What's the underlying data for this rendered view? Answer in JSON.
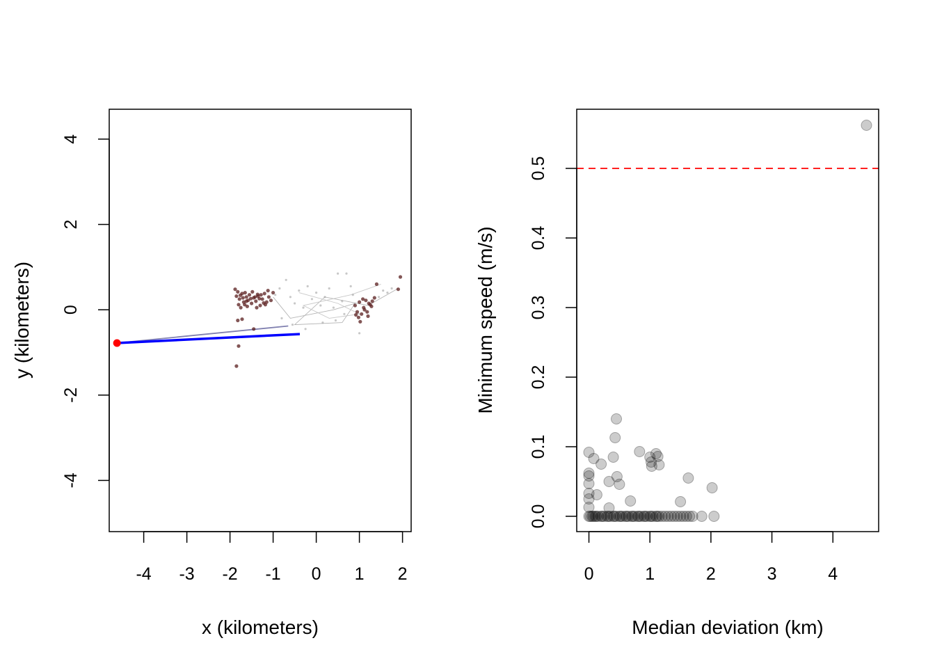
{
  "chart_data": [
    {
      "type": "scatter",
      "xlabel": "x (kilometers)",
      "ylabel": "y (kilometers)",
      "xlim": [
        -4.8,
        2.2
      ],
      "ylim": [
        -5.2,
        4.7
      ],
      "x_ticks": [
        -4,
        -3,
        -2,
        -1,
        0,
        1,
        2
      ],
      "y_ticks": [
        -4,
        -2,
        0,
        2,
        4
      ],
      "grid": false,
      "series": [
        {
          "role": "track-points",
          "color": "#5a1e1e",
          "points": [
            [
              -1.85,
              0.32
            ],
            [
              -1.78,
              0.25
            ],
            [
              -1.72,
              0.38
            ],
            [
              -1.68,
              0.18
            ],
            [
              -1.62,
              0.3
            ],
            [
              -1.58,
              0.22
            ],
            [
              -1.8,
              0.12
            ],
            [
              -1.75,
              0.05
            ],
            [
              -1.7,
              0.28
            ],
            [
              -1.65,
              0.4
            ],
            [
              -1.55,
              0.35
            ],
            [
              -1.5,
              0.15
            ],
            [
              -1.45,
              0.28
            ],
            [
              -1.4,
              0.2
            ],
            [
              -1.35,
              0.32
            ],
            [
              -1.3,
              0.1
            ],
            [
              -1.25,
              0.25
            ],
            [
              -1.2,
              0.38
            ],
            [
              -1.15,
              0.18
            ],
            [
              -1.1,
              0.3
            ],
            [
              -1.05,
              0.22
            ],
            [
              -1.0,
              0.4
            ],
            [
              -1.88,
              0.48
            ],
            [
              -1.82,
              0.42
            ],
            [
              -1.6,
              0.08
            ],
            [
              -1.48,
              0.42
            ],
            [
              -1.38,
              0.05
            ],
            [
              -1.28,
              0.35
            ],
            [
              -1.18,
              0.12
            ],
            [
              -1.12,
              0.45
            ],
            [
              -1.72,
              -0.22
            ],
            [
              -1.82,
              -0.25
            ],
            [
              -1.42,
              0.3
            ],
            [
              -1.32,
              0.26
            ],
            [
              -1.22,
              0.16
            ],
            [
              -1.52,
              0.26
            ],
            [
              -1.62,
              0.2
            ],
            [
              -1.76,
              0.34
            ],
            [
              -1.66,
              0.12
            ],
            [
              -1.36,
              0.36
            ],
            [
              0.9,
              0.1
            ],
            [
              0.95,
              -0.05
            ],
            [
              1.0,
              0.18
            ],
            [
              1.05,
              -0.1
            ],
            [
              1.1,
              0.05
            ],
            [
              1.15,
              0.22
            ],
            [
              1.2,
              -0.15
            ],
            [
              1.25,
              0.12
            ],
            [
              1.3,
              0.2
            ],
            [
              1.35,
              0.28
            ],
            [
              0.98,
              -0.18
            ],
            [
              1.08,
              0.25
            ],
            [
              1.18,
              -0.05
            ],
            [
              1.28,
              0.08
            ],
            [
              1.02,
              -0.28
            ],
            [
              1.12,
              0.0
            ],
            [
              0.92,
              -0.12
            ],
            [
              1.22,
              0.15
            ],
            [
              1.4,
              0.6
            ],
            [
              1.9,
              0.48
            ],
            [
              1.95,
              0.77
            ],
            [
              -1.8,
              -0.85
            ],
            [
              -1.85,
              -1.32
            ],
            [
              -1.45,
              -0.45
            ]
          ]
        },
        {
          "role": "faint-points",
          "color": "#9a9a9a",
          "points": [
            [
              -0.95,
              0.35
            ],
            [
              -0.85,
              0.5
            ],
            [
              -0.7,
              0.7
            ],
            [
              -0.6,
              0.3
            ],
            [
              -0.5,
              0.15
            ],
            [
              -0.4,
              0.45
            ],
            [
              -0.3,
              0.05
            ],
            [
              -0.2,
              0.55
            ],
            [
              -0.1,
              0.25
            ],
            [
              0.0,
              0.4
            ],
            [
              0.1,
              0.1
            ],
            [
              0.2,
              0.3
            ],
            [
              0.3,
              0.5
            ],
            [
              0.4,
              0.05
            ],
            [
              0.5,
              0.85
            ],
            [
              0.6,
              0.2
            ],
            [
              0.7,
              0.85
            ],
            [
              0.8,
              0.55
            ],
            [
              0.85,
              0.35
            ],
            [
              -0.55,
              -0.35
            ],
            [
              -0.8,
              -0.2
            ],
            [
              0.45,
              -0.25
            ],
            [
              0.65,
              -0.1
            ],
            [
              1.0,
              -0.55
            ],
            [
              0.15,
              -0.3
            ],
            [
              -0.25,
              -0.45
            ],
            [
              1.45,
              0.3
            ],
            [
              1.55,
              0.45
            ],
            [
              1.65,
              0.4
            ],
            [
              1.75,
              0.5
            ]
          ]
        }
      ],
      "lines": [
        {
          "role": "faint-track",
          "color": "#b4b4b4",
          "path": [
            [
              -1.0,
              0.3
            ],
            [
              -0.6,
              -0.2
            ],
            [
              0.4,
              0.0
            ],
            [
              0.9,
              0.15
            ],
            [
              0.6,
              -0.3
            ],
            [
              -0.5,
              -0.35
            ],
            [
              0.2,
              0.3
            ],
            [
              1.2,
              0.1
            ],
            [
              1.9,
              0.5
            ]
          ]
        },
        {
          "role": "faint-track",
          "color": "#c8c8c8",
          "path": [
            [
              -0.4,
              0.4
            ],
            [
              0.5,
              0.15
            ],
            [
              1.0,
              -0.1
            ],
            [
              0.3,
              -0.2
            ],
            [
              -0.3,
              0.1
            ],
            [
              0.8,
              0.35
            ],
            [
              1.5,
              0.6
            ]
          ]
        },
        {
          "role": "flagged-track",
          "color": "#8080b0",
          "path": [
            [
              -4.62,
              -0.78
            ],
            [
              -0.65,
              -0.38
            ]
          ]
        },
        {
          "role": "flagged-segment",
          "color": "#0000ff",
          "path": [
            [
              -4.62,
              -0.78
            ],
            [
              -0.38,
              -0.57
            ]
          ]
        }
      ],
      "highlight_point": {
        "x": -4.62,
        "y": -0.78,
        "color": "#ff0000"
      }
    },
    {
      "type": "scatter",
      "xlabel": "Median deviation (km)",
      "ylabel": "Minimum speed (m/s)",
      "xlim": [
        -0.2,
        4.75
      ],
      "ylim": [
        -0.022,
        0.585
      ],
      "x_ticks": [
        0,
        1,
        2,
        3,
        4
      ],
      "y_ticks": [
        0.0,
        0.1,
        0.2,
        0.3,
        0.4,
        0.5
      ],
      "y_tick_labels": [
        "0.0",
        "0.1",
        "0.2",
        "0.3",
        "0.4",
        "0.5"
      ],
      "grid": false,
      "threshold": {
        "y": 0.5,
        "color": "#ff0000",
        "style": "dashed"
      },
      "point_color": "#000000",
      "points": [
        [
          4.55,
          0.562
        ],
        [
          0.0,
          0.092
        ],
        [
          0.08,
          0.083
        ],
        [
          0.2,
          0.075
        ],
        [
          0.45,
          0.14
        ],
        [
          0.43,
          0.113
        ],
        [
          0.4,
          0.085
        ],
        [
          0.83,
          0.093
        ],
        [
          1.0,
          0.085
        ],
        [
          1.02,
          0.078
        ],
        [
          1.03,
          0.072
        ],
        [
          1.1,
          0.09
        ],
        [
          1.13,
          0.086
        ],
        [
          1.15,
          0.074
        ],
        [
          0.0,
          0.062
        ],
        [
          0.0,
          0.058
        ],
        [
          0.0,
          0.047
        ],
        [
          0.0,
          0.033
        ],
        [
          0.0,
          0.025
        ],
        [
          0.0,
          0.013
        ],
        [
          0.33,
          0.05
        ],
        [
          0.46,
          0.057
        ],
        [
          0.5,
          0.046
        ],
        [
          0.13,
          0.031
        ],
        [
          0.68,
          0.022
        ],
        [
          0.33,
          0.012
        ],
        [
          1.63,
          0.055
        ],
        [
          1.5,
          0.021
        ],
        [
          2.02,
          0.041
        ],
        [
          0.0,
          0.0
        ],
        [
          0.05,
          0.0
        ],
        [
          0.1,
          0.0
        ],
        [
          0.15,
          0.0
        ],
        [
          0.2,
          0.0
        ],
        [
          0.25,
          0.0
        ],
        [
          0.3,
          0.0
        ],
        [
          0.35,
          0.0
        ],
        [
          0.4,
          0.0
        ],
        [
          0.45,
          0.0
        ],
        [
          0.5,
          0.0
        ],
        [
          0.55,
          0.0
        ],
        [
          0.6,
          0.0
        ],
        [
          0.65,
          0.0
        ],
        [
          0.7,
          0.0
        ],
        [
          0.75,
          0.0
        ],
        [
          0.8,
          0.0
        ],
        [
          0.85,
          0.0
        ],
        [
          0.9,
          0.0
        ],
        [
          0.95,
          0.0
        ],
        [
          1.0,
          0.0
        ],
        [
          1.05,
          0.0
        ],
        [
          1.1,
          0.0
        ],
        [
          1.15,
          0.0
        ],
        [
          1.2,
          0.0
        ],
        [
          1.25,
          0.0
        ],
        [
          1.3,
          0.0
        ],
        [
          1.35,
          0.0
        ],
        [
          1.4,
          0.0
        ],
        [
          1.45,
          0.0
        ],
        [
          1.5,
          0.0
        ],
        [
          1.55,
          0.0
        ],
        [
          1.6,
          0.0
        ],
        [
          1.65,
          0.0
        ],
        [
          1.7,
          0.0
        ],
        [
          1.85,
          0.0
        ],
        [
          2.05,
          0.0
        ],
        [
          0.02,
          0.0
        ],
        [
          0.07,
          0.0
        ],
        [
          0.12,
          0.0
        ],
        [
          0.22,
          0.0
        ],
        [
          0.32,
          0.0
        ],
        [
          0.42,
          0.0
        ],
        [
          0.52,
          0.0
        ],
        [
          0.62,
          0.0
        ],
        [
          0.72,
          0.0
        ],
        [
          0.82,
          0.0
        ],
        [
          0.92,
          0.0
        ],
        [
          1.02,
          0.0
        ],
        [
          1.12,
          0.0
        ]
      ]
    }
  ]
}
